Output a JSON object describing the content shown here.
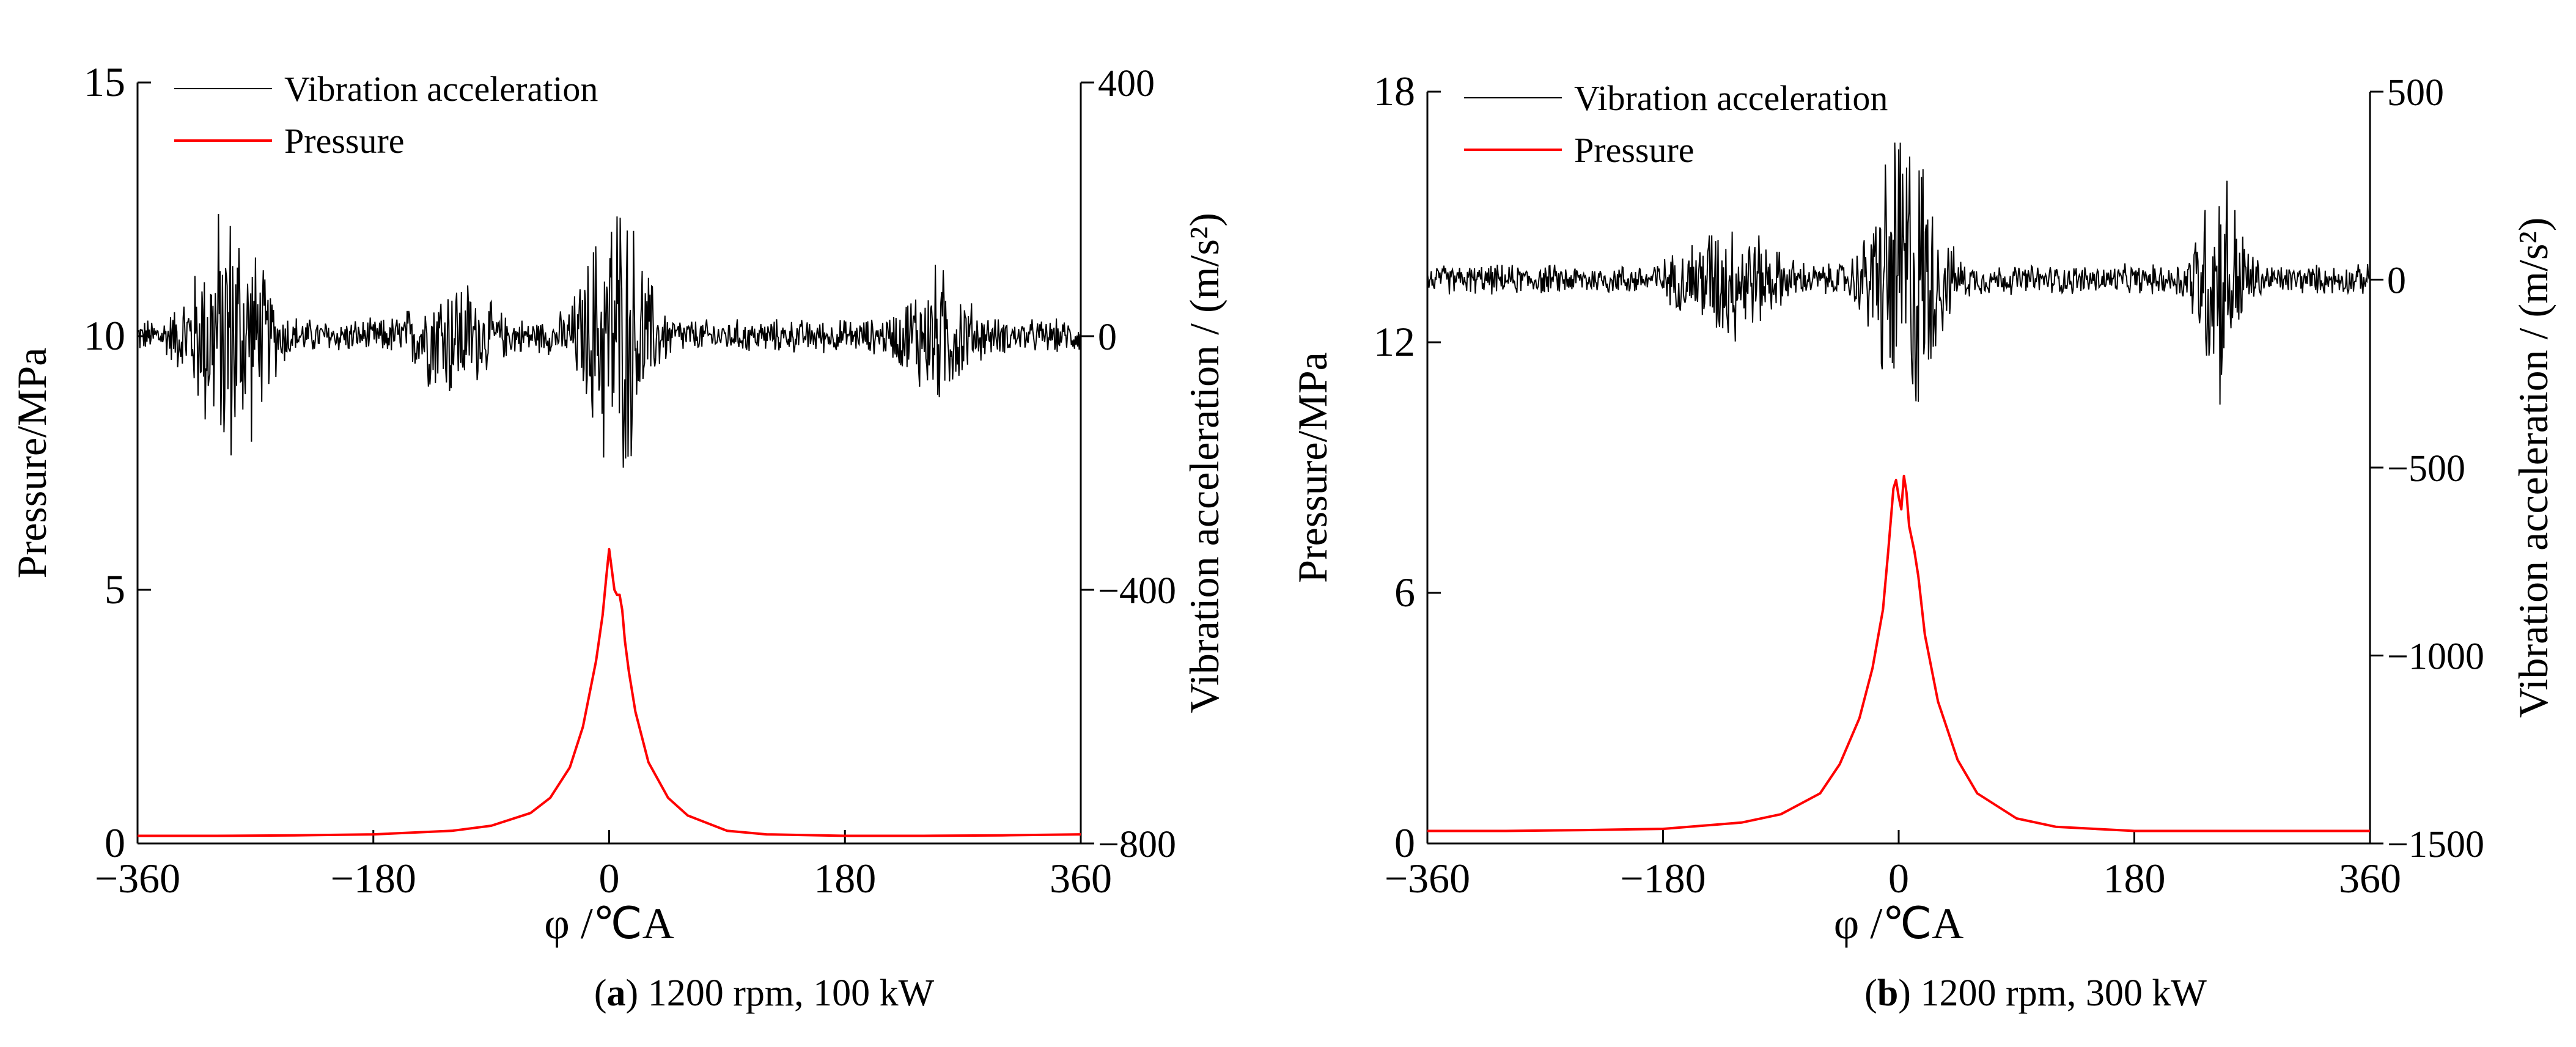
{
  "chart_data": [
    {
      "type": "line",
      "caption": {
        "label": "a",
        "text": " 1200 rpm, 100 kW"
      },
      "xlabel": "φ /℃A",
      "xlim": [
        -360,
        360
      ],
      "xticks": [
        "−360",
        "−180",
        "0",
        "180",
        "360"
      ],
      "xtick_values": [
        -360,
        -180,
        0,
        180,
        360
      ],
      "ylabel_left": "Pressure/MPa",
      "ylim_left": [
        0,
        15
      ],
      "yticks_left": [
        "0",
        "5",
        "10",
        "15"
      ],
      "ytick_values_left": [
        0,
        5,
        10,
        15
      ],
      "ylabel_right": "Vibration acceleration / (m/s²)",
      "ylim_right": [
        -800,
        400
      ],
      "yticks_right": [
        "−800",
        "−400",
        "0",
        "400"
      ],
      "ytick_values_right": [
        -800,
        -400,
        0,
        400
      ],
      "legend": [
        "Vibration acceleration",
        "Pressure"
      ],
      "series": [
        {
          "name": "Pressure",
          "axis": "left",
          "color": "#ff0000",
          "x": [
            -360,
            -300,
            -240,
            -180,
            -120,
            -90,
            -60,
            -45,
            -30,
            -20,
            -10,
            -5,
            -2,
            0,
            2,
            4,
            6,
            8,
            10,
            12,
            15,
            20,
            30,
            45,
            60,
            90,
            120,
            180,
            240,
            300,
            360
          ],
          "values": [
            0.15,
            0.15,
            0.16,
            0.18,
            0.25,
            0.35,
            0.6,
            0.9,
            1.5,
            2.3,
            3.6,
            4.5,
            5.3,
            5.8,
            5.4,
            5.0,
            4.9,
            4.9,
            4.6,
            4.0,
            3.4,
            2.6,
            1.6,
            0.9,
            0.55,
            0.25,
            0.18,
            0.15,
            0.15,
            0.16,
            0.18
          ]
        },
        {
          "name": "Vibration acceleration",
          "axis": "right",
          "color": "#000000",
          "baseline": 0,
          "noise_amplitude": 30,
          "bursts": [
            {
              "x": -290,
              "width": 40,
              "amplitude": 220
            },
            {
              "x": -120,
              "width": 40,
              "amplitude": 90
            },
            {
              "x": 5,
              "width": 35,
              "amplitude": 240
            },
            {
              "x": 250,
              "width": 35,
              "amplitude": 100
            }
          ]
        }
      ]
    },
    {
      "type": "line",
      "caption": {
        "label": "b",
        "text": " 1200 rpm, 300 kW"
      },
      "xlabel": "φ /℃A",
      "xlim": [
        -360,
        360
      ],
      "xticks": [
        "−360",
        "−180",
        "0",
        "180",
        "360"
      ],
      "xtick_values": [
        -360,
        -180,
        0,
        180,
        360
      ],
      "ylabel_left": "Pressure/MPa",
      "ylim_left": [
        0,
        18
      ],
      "yticks_left": [
        "0",
        "6",
        "12",
        "18"
      ],
      "ytick_values_left": [
        0,
        6,
        12,
        18
      ],
      "ylabel_right": "Vibration acceleration / (m/s²)",
      "ylim_right": [
        -1500,
        500
      ],
      "yticks_right": [
        "−1500",
        "−1000",
        "−500",
        "0",
        "500"
      ],
      "ytick_values_right": [
        -1500,
        -1000,
        -500,
        0,
        500
      ],
      "legend": [
        "Vibration acceleration",
        "Pressure"
      ],
      "series": [
        {
          "name": "Pressure",
          "axis": "left",
          "color": "#ff0000",
          "x": [
            -360,
            -300,
            -240,
            -180,
            -120,
            -90,
            -60,
            -45,
            -30,
            -20,
            -12,
            -8,
            -4,
            -2,
            0,
            2,
            4,
            6,
            8,
            10,
            12,
            15,
            20,
            30,
            45,
            60,
            90,
            120,
            180,
            240,
            300,
            360
          ],
          "values": [
            0.3,
            0.3,
            0.32,
            0.35,
            0.5,
            0.7,
            1.2,
            1.9,
            3.0,
            4.2,
            5.6,
            7.0,
            8.5,
            8.7,
            8.3,
            8.0,
            8.8,
            8.4,
            7.6,
            7.3,
            7.0,
            6.4,
            5.0,
            3.4,
            2.0,
            1.2,
            0.6,
            0.4,
            0.3,
            0.3,
            0.3,
            0.3
          ]
        },
        {
          "name": "Vibration acceleration",
          "axis": "right",
          "color": "#000000",
          "baseline": 0,
          "noise_amplitude": 45,
          "bursts": [
            {
              "x": -130,
              "width": 50,
              "amplitude": 150
            },
            {
              "x": 5,
              "width": 35,
              "amplitude": 480
            },
            {
              "x": 245,
              "width": 25,
              "amplitude": 330
            }
          ]
        }
      ]
    }
  ]
}
